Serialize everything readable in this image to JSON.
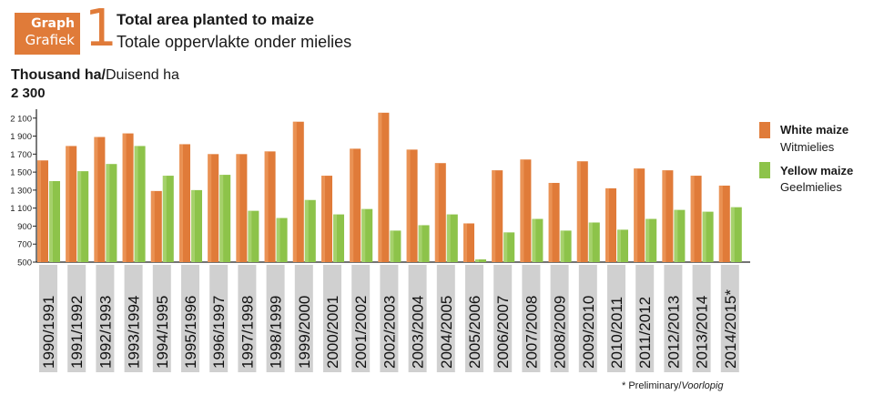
{
  "header": {
    "badge_line1": "Graph",
    "badge_line2": "Grafiek",
    "number": "1",
    "title": "Total area planted to maize",
    "subtitle": "Totale oppervlakte onder mielies"
  },
  "unit_bold": "Thousand ha/",
  "unit_rest": "Duisend ha",
  "ymax_label": "2 300",
  "legend": {
    "white_en": "White maize",
    "white_af": "Witmielies",
    "yellow_en": "Yellow maize",
    "yellow_af": "Geelmielies"
  },
  "footnote_prefix": "* Preliminary/",
  "footnote_italic": "Voorlopig",
  "colors": {
    "white": "#e07b39",
    "yellow": "#8dc34a",
    "label_bg": "#d0d0d0"
  },
  "chart_data": {
    "type": "bar",
    "categories": [
      "1990/1991",
      "1991/1992",
      "1992/1993",
      "1993/1994",
      "1994/1995",
      "1995/1996",
      "1996/1997",
      "1997/1998",
      "1998/1999",
      "1999/2000",
      "2000/2001",
      "2001/2002",
      "2002/2003",
      "2003/2004",
      "2004/2005",
      "2005/2006",
      "2006/2007",
      "2007/2008",
      "2008/2009",
      "2009/2010",
      "2010/2011",
      "2011/2012",
      "2012/2013",
      "2013/2014",
      "2014/2015*"
    ],
    "series": [
      {
        "name": "White maize",
        "values": [
          1630,
          1790,
          1890,
          1930,
          1290,
          1810,
          1700,
          1700,
          1730,
          2060,
          1460,
          1760,
          2160,
          1750,
          1600,
          930,
          1520,
          1640,
          1380,
          1620,
          1320,
          1540,
          1520,
          1460,
          1350
        ]
      },
      {
        "name": "Yellow maize",
        "values": [
          1400,
          1510,
          1590,
          1790,
          1460,
          1300,
          1470,
          1070,
          990,
          1190,
          1030,
          1090,
          850,
          910,
          1030,
          530,
          830,
          980,
          850,
          940,
          860,
          980,
          1080,
          1060,
          1110
        ]
      }
    ],
    "yticks": [
      500,
      700,
      900,
      1100,
      1300,
      1500,
      1700,
      1900,
      2100
    ],
    "ytick_labels": [
      "500",
      "700",
      "900",
      "1 100",
      "1 300",
      "1 500",
      "1 700",
      "1 900",
      "2 100"
    ],
    "ylim": [
      500,
      2300
    ]
  }
}
